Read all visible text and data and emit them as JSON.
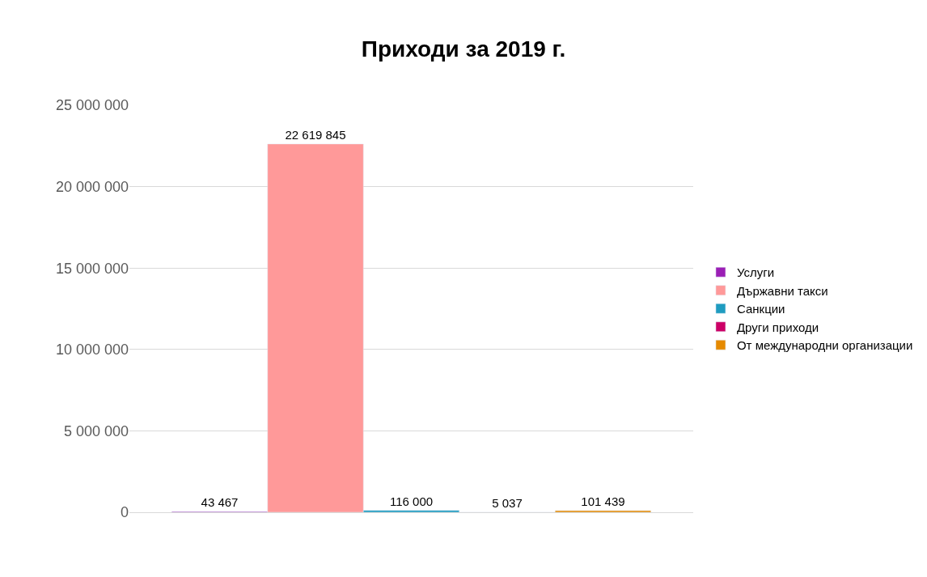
{
  "chart_data": {
    "type": "bar",
    "title": "Приходи за 2019 г.",
    "categories": [
      null
    ],
    "series": [
      {
        "name": "Услуги",
        "color": "#9b1fb5",
        "values": [
          43467
        ]
      },
      {
        "name": "Държавни такси",
        "color": "#ff9999",
        "values": [
          22619845
        ]
      },
      {
        "name": "Санкции",
        "color": "#1f9cc0",
        "values": [
          116000
        ]
      },
      {
        "name": "Други приходи",
        "color": "#cc0066",
        "values": [
          5037
        ]
      },
      {
        "name": "От международни организации",
        "color": "#e68a00",
        "values": [
          101439
        ]
      }
    ],
    "ylim": [
      0,
      25000000
    ],
    "yticks": [
      {
        "value": 0,
        "label": "0"
      },
      {
        "value": 5000000,
        "label": "5 000 000"
      },
      {
        "value": 10000000,
        "label": "10 000 000"
      },
      {
        "value": 15000000,
        "label": "15 000 000"
      },
      {
        "value": 20000000,
        "label": "20 000 000"
      },
      {
        "value": 25000000,
        "label": "25 000 000"
      }
    ],
    "grid": "y",
    "legend": "right",
    "data_labels": true,
    "tick_labels": "y"
  }
}
